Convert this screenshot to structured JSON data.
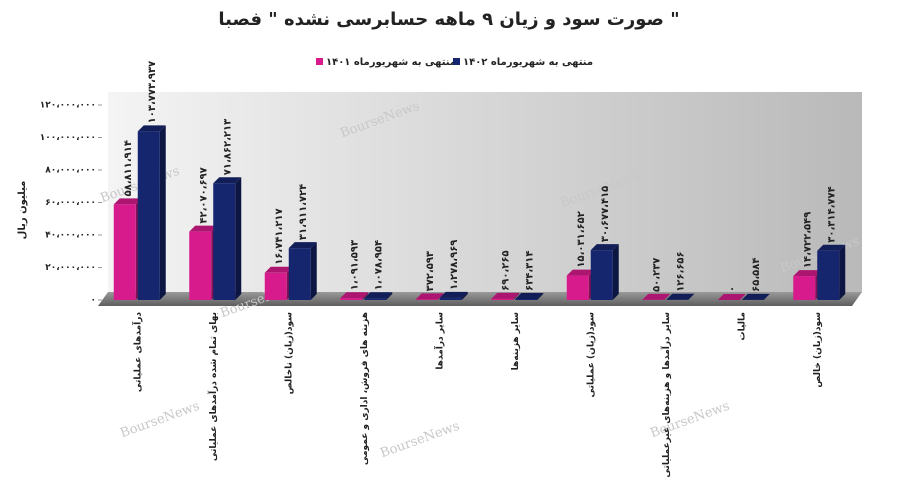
{
  "chart_data": {
    "type": "bar",
    "title": "صورت سود و زیان ۹ ماهه حسابرسی نشده \" فصبا \"",
    "y_label": "میلیون ریال",
    "watermark": "BourseNews",
    "categories": [
      "درآمدهای عملیاتی",
      "بهای تمام شده درآمدهای عملیاتی",
      "سود(زیان) ناخالص",
      "هزینه های فروش، اداری و عمومی",
      "سایر درآمدها",
      "سایر هزینه‌ها",
      "سود(زیان) عملیاتی",
      "سایر درآمدها و هزینه‌های غیرعملیاتی",
      "مالیات",
      "سود(زیان) خالص"
    ],
    "series": [
      {
        "name": "منتهی به شهریورماه ۱۴۰۱",
        "color": "#d81b8c",
        "values": [
          58811914,
          42070697,
          16741217,
          1091593,
          372593,
          690265,
          15031652,
          50237,
          0,
          14722549
        ],
        "value_labels": [
          "۵۸،۸۱۱،۹۱۴",
          "۴۲،۰۷۰،۶۹۷",
          "۱۶،۷۴۱،۲۱۷",
          "۱،۰۹۱،۵۹۳",
          "۳۷۲،۵۹۳",
          "۶۹۰،۲۶۵",
          "۱۵،۰۳۱،۶۵۲",
          "۵۰،۲۳۷",
          "۰",
          "۱۴،۷۲۲،۵۴۹"
        ]
      },
      {
        "name": "منتهی به شهریورماه ۱۴۰۲",
        "color": "#15256e",
        "values": [
          103773937,
          71862213,
          31911724,
          1078954,
          1278969,
          634314,
          30677415,
          126656,
          65584,
          30314774
        ],
        "value_labels": [
          "۱۰۳،۷۷۳،۹۳۷",
          "۷۱،۸۶۲،۲۱۳",
          "۳۱،۹۱۱،۷۲۴",
          "۱،۰۷۸،۹۵۴",
          "۱،۲۷۸،۹۶۹",
          "۶۳۴،۳۱۴",
          "۳۰،۶۷۷،۴۱۵",
          "۱۲۶،۶۵۶",
          "۶۵،۵۸۴",
          "۳۰،۳۱۴،۷۷۴"
        ]
      }
    ],
    "ylim": [
      0,
      120000000
    ],
    "yticks": [
      {
        "value": 0,
        "label": "۰"
      },
      {
        "value": 20000000,
        "label": "۲۰،۰۰۰،۰۰۰"
      },
      {
        "value": 40000000,
        "label": "۴۰،۰۰۰،۰۰۰"
      },
      {
        "value": 60000000,
        "label": "۶۰،۰۰۰،۰۰۰"
      },
      {
        "value": 80000000,
        "label": "۸۰،۰۰۰،۰۰۰"
      },
      {
        "value": 100000000,
        "label": "۱۰۰،۰۰۰،۰۰۰"
      },
      {
        "value": 120000000,
        "label": "۱۲۰،۰۰۰،۰۰۰"
      }
    ],
    "grid": false,
    "legend": "top"
  }
}
